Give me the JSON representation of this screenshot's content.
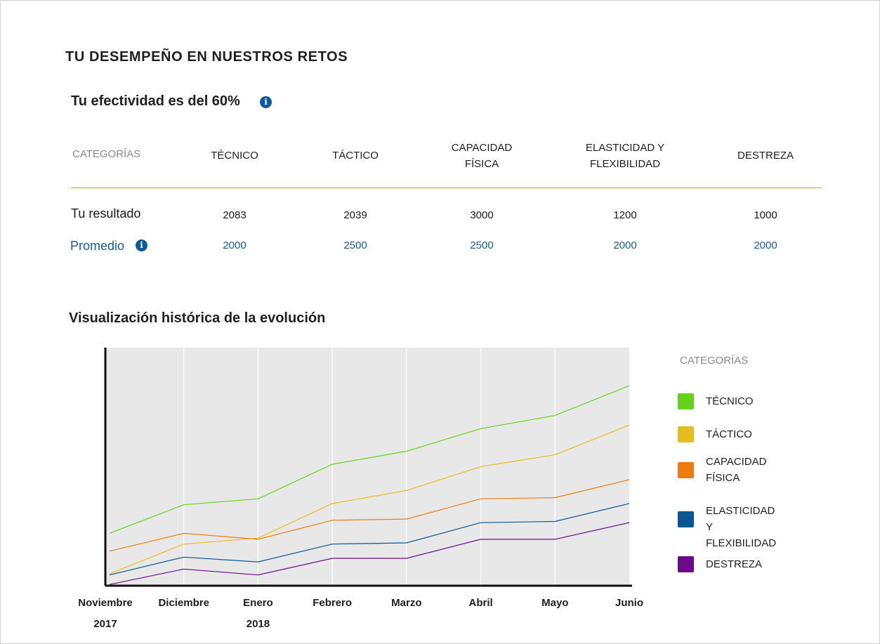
{
  "page_title": "TU DESEMPEÑO EN NUESTROS RETOS",
  "effectiveness": "Tu efectividad es del 60%",
  "table": {
    "header_label": "CATEGORÍAS",
    "columns": [
      "TÉCNICO",
      "TÁCTICO",
      "CAPACIDAD\nFÍSICA",
      "ELASTICIDAD Y\nFLEXIBILIDAD",
      "DESTREZA"
    ],
    "result_label": "Tu resultado",
    "results": [
      "2083",
      "2039",
      "3000",
      "1200",
      "1000"
    ],
    "average_label": "Promedio",
    "averages": [
      "2000",
      "2500",
      "2500",
      "2000",
      "2000"
    ]
  },
  "history_title": "Visualización histórica de la evolución",
  "colors": {
    "accent_rule": "#d49a2a",
    "link_blue": "#1a5a96",
    "info_icon": "#0a5a9c",
    "plot_bg": "#e8e8e8"
  },
  "icons": [
    "info-icon"
  ],
  "chart_data": {
    "type": "line",
    "categories": [
      "Noviembre",
      "Diciembre",
      "Enero",
      "Febrero",
      "Marzo",
      "Abril",
      "Mayo",
      "Junio"
    ],
    "year_labels": [
      "2017",
      "",
      "2018",
      "",
      "",
      "",
      "",
      ""
    ],
    "ylim": [
      0,
      100
    ],
    "grid": true,
    "legend_title": "CATEGORÍAS",
    "legend_position": "right",
    "series": [
      {
        "name": "TÉCNICO",
        "color": "#66d21a",
        "values": [
          22,
          34,
          36.5,
          51,
          56.5,
          66,
          71.5,
          84
        ]
      },
      {
        "name": "TÁCTICO",
        "color": "#e6bd20",
        "values": [
          5,
          17.5,
          20,
          34.5,
          40,
          50,
          55,
          67.5
        ]
      },
      {
        "name": "CAPACIDAD\nFÍSICA",
        "color": "#ee7a0d",
        "values": [
          14.5,
          22,
          19.5,
          27.5,
          28,
          36.5,
          37,
          44.5
        ]
      },
      {
        "name": "ELASTICIDAD Y\nFLEXIBILIDAD",
        "color": "#0a5592",
        "values": [
          4.5,
          12,
          10,
          17.5,
          18,
          26.5,
          27,
          34.5
        ]
      },
      {
        "name": "DESTREZA",
        "color": "#6b0a8a",
        "values": [
          0.5,
          7,
          4.5,
          11.5,
          11.5,
          19.5,
          19.5,
          26.5
        ]
      }
    ]
  }
}
